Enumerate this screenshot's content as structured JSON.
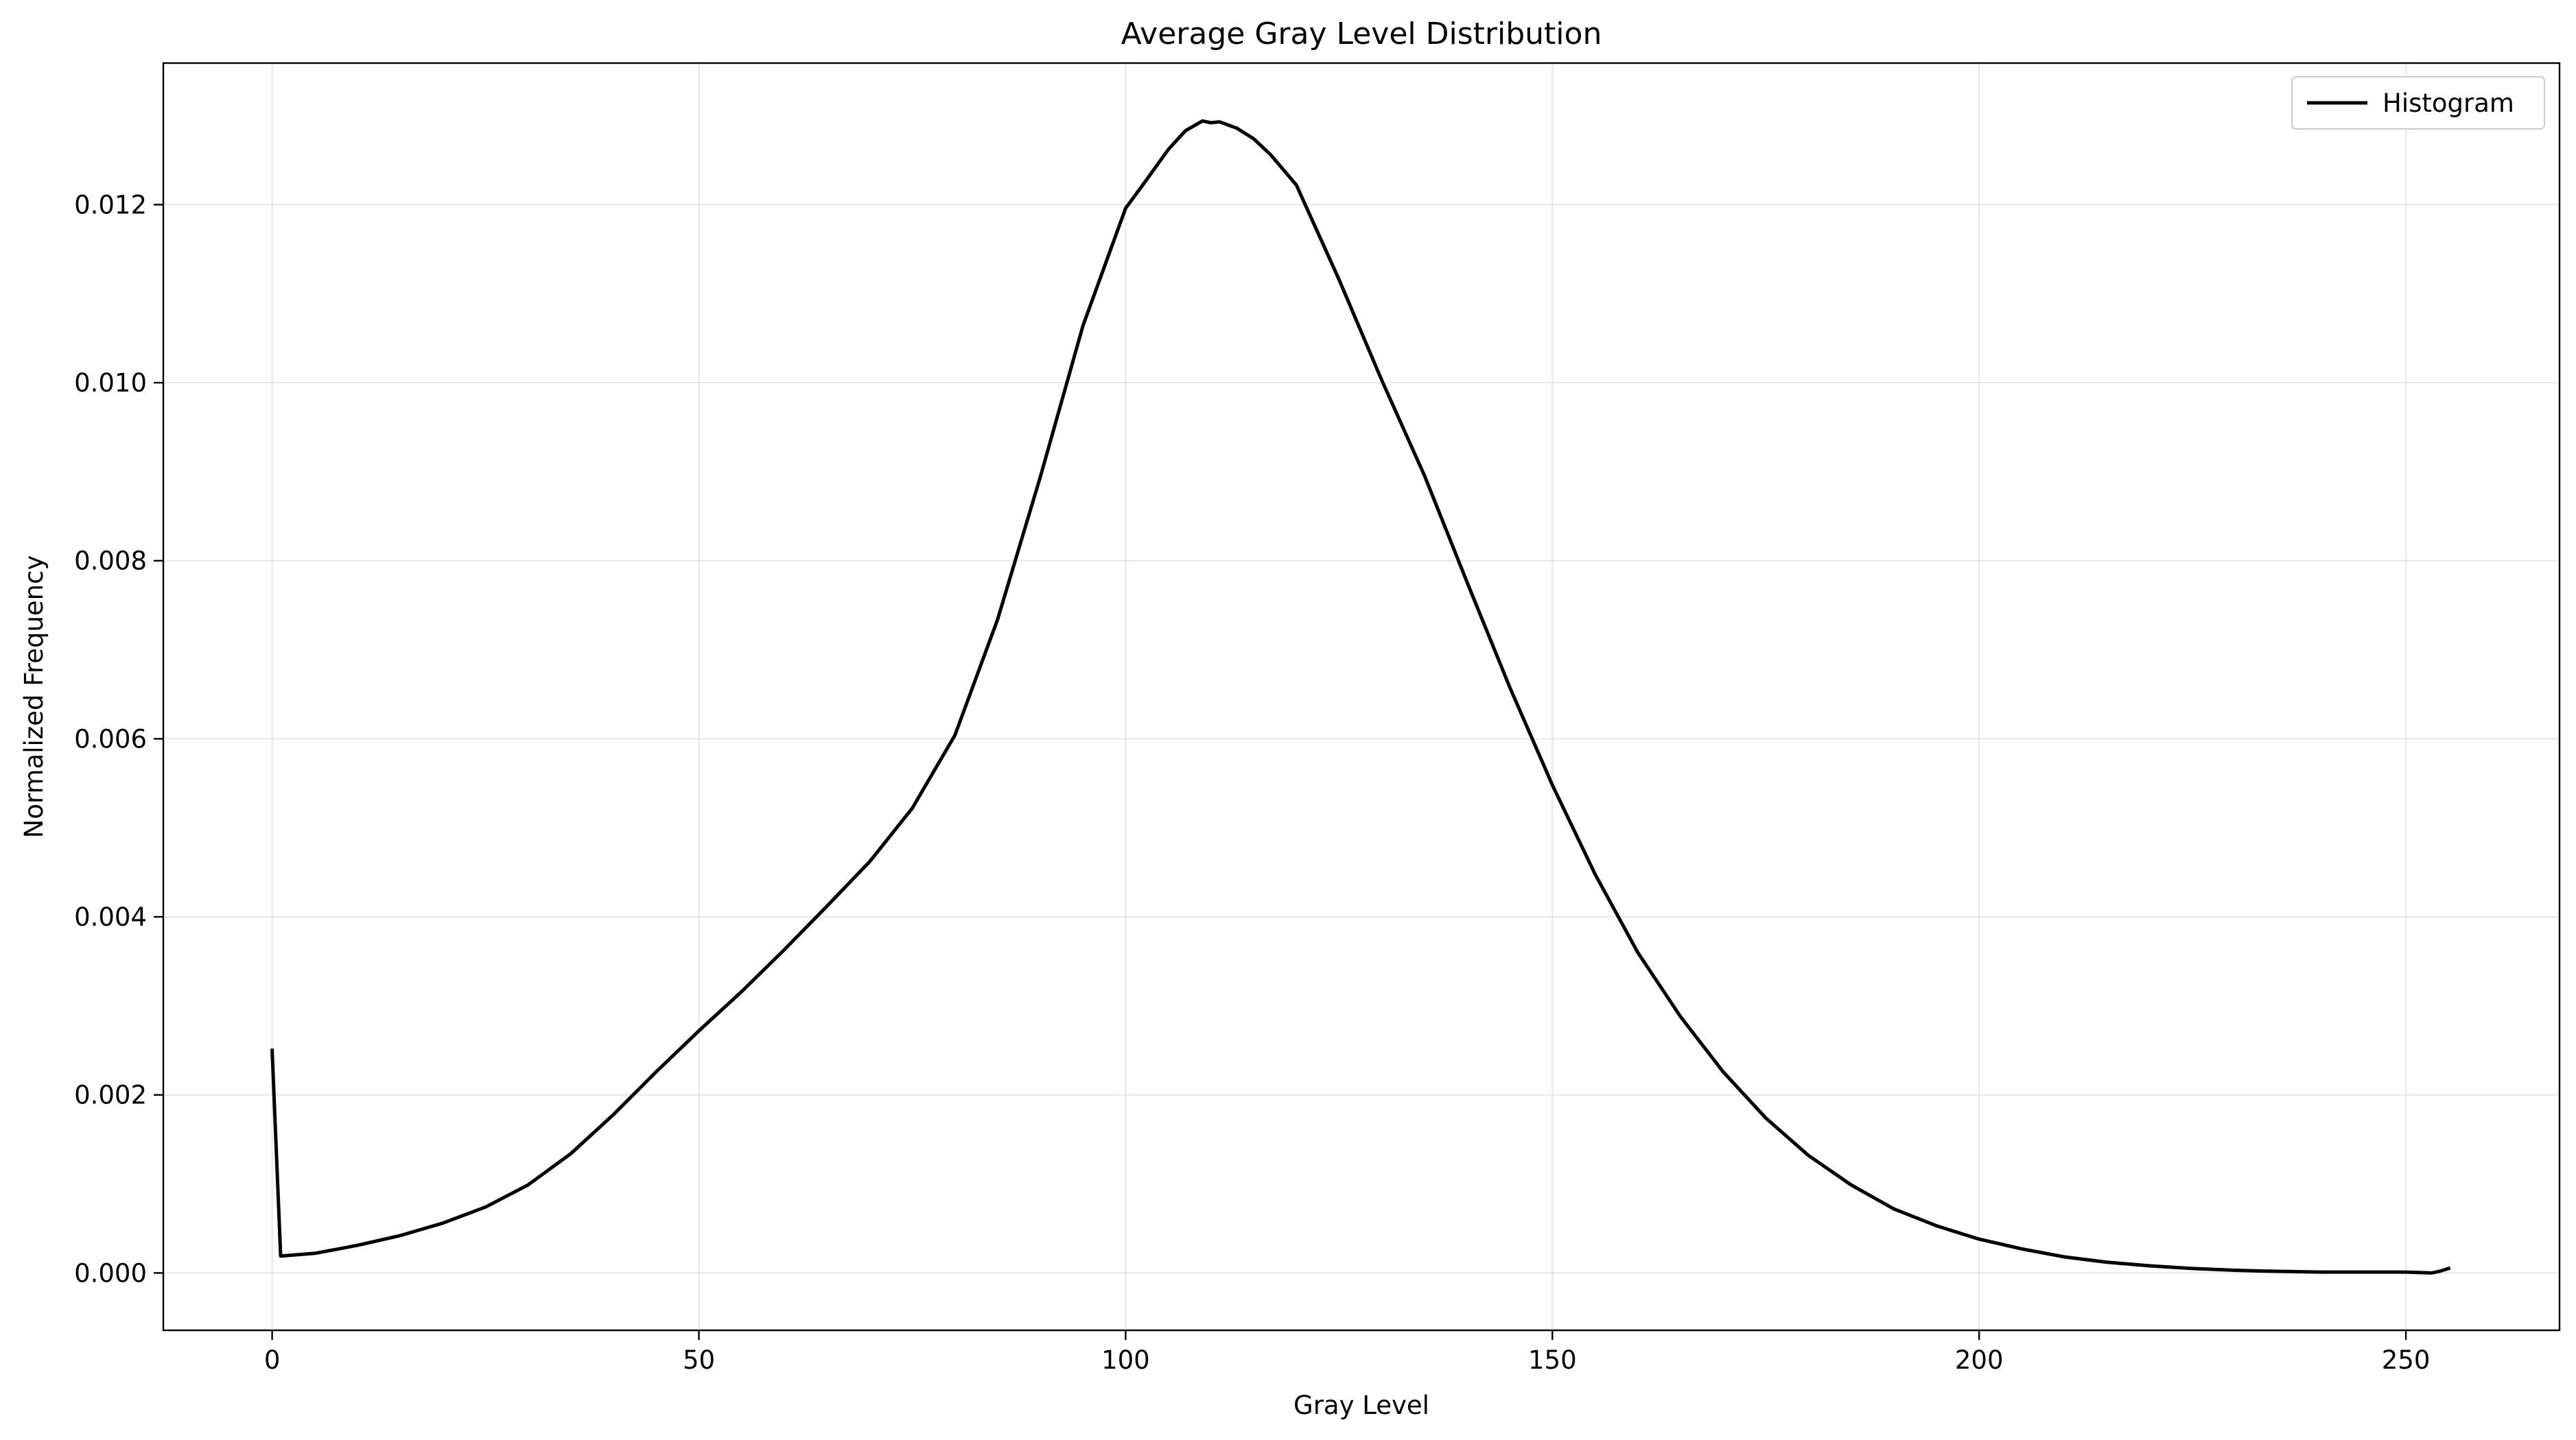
{
  "chart_data": {
    "type": "line",
    "title": "Average Gray Level Distribution",
    "xlabel": "Gray Level",
    "ylabel": "Normalized Frequency",
    "xlim": [
      -12.75,
      268
    ],
    "ylim": [
      -0.000644,
      0.01359
    ],
    "x_ticks": [
      0,
      50,
      100,
      150,
      200,
      250
    ],
    "y_ticks": [
      0.0,
      0.002,
      0.004,
      0.006,
      0.008,
      0.01,
      0.012
    ],
    "y_tick_labels": [
      "0.000",
      "0.002",
      "0.004",
      "0.006",
      "0.008",
      "0.010",
      "0.012"
    ],
    "grid": true,
    "legend": "top-right",
    "series": [
      {
        "name": "Histogram",
        "color": "#000000",
        "x": [
          0,
          1,
          5,
          10,
          15,
          20,
          25,
          30,
          35,
          40,
          45,
          50,
          55,
          60,
          65,
          70,
          75,
          80,
          85,
          90,
          95,
          100,
          102,
          105,
          107,
          109,
          110,
          111,
          113,
          115,
          117,
          120,
          125,
          130,
          135,
          140,
          145,
          150,
          155,
          160,
          165,
          170,
          175,
          180,
          185,
          190,
          195,
          200,
          205,
          210,
          215,
          220,
          225,
          230,
          234,
          240,
          245,
          250,
          253,
          254,
          255
        ],
        "y": [
          0.0025,
          0.00019,
          0.00022,
          0.00031,
          0.00042,
          0.00056,
          0.00074,
          0.00099,
          0.00134,
          0.00178,
          0.00226,
          0.00272,
          0.00316,
          0.00363,
          0.00412,
          0.00462,
          0.00522,
          0.00604,
          0.00734,
          0.00894,
          0.01064,
          0.01196,
          0.01222,
          0.01262,
          0.01283,
          0.01294,
          0.01292,
          0.01293,
          0.01286,
          0.01274,
          0.01256,
          0.01222,
          0.01116,
          0.01003,
          0.00896,
          0.00776,
          0.00658,
          0.00548,
          0.00448,
          0.0036,
          0.00288,
          0.00226,
          0.00174,
          0.00132,
          0.00099,
          0.00072,
          0.00053,
          0.00038,
          0.00027,
          0.00018,
          0.00012,
          8e-05,
          5e-05,
          3e-05,
          2e-05,
          1e-05,
          1e-05,
          1e-05,
          0.0,
          2e-05,
          5e-05
        ]
      }
    ]
  }
}
